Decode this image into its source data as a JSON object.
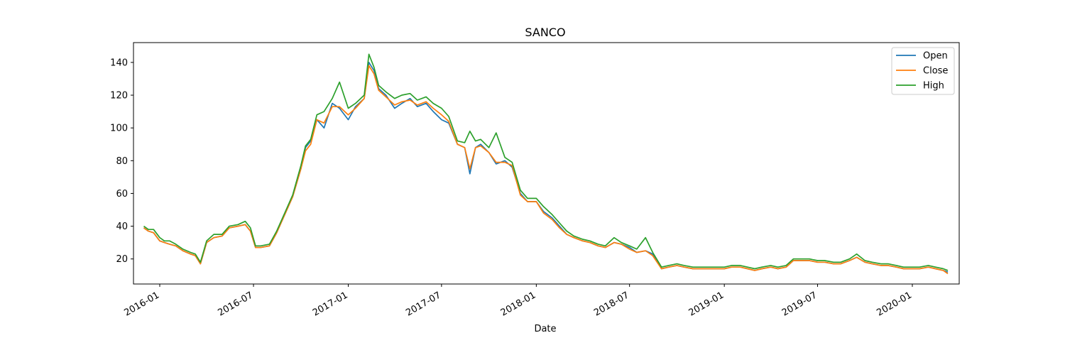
{
  "chart_data": {
    "type": "line",
    "title": "SANCO",
    "xlabel": "Date",
    "ylabel": "",
    "xlim": [
      "2015-11-11",
      "2020-04-01"
    ],
    "ylim": [
      4.7,
      152.1
    ],
    "x_ticks": [
      "2016-01",
      "2016-07",
      "2017-01",
      "2017-07",
      "2018-01",
      "2018-07",
      "2019-01",
      "2019-07",
      "2020-01"
    ],
    "y_ticks": [
      20,
      40,
      60,
      80,
      100,
      120,
      140
    ],
    "grid": false,
    "legend": {
      "position": "top-right"
    },
    "x": [
      "2015-12-01",
      "2015-12-10",
      "2015-12-20",
      "2016-01-01",
      "2016-01-10",
      "2016-01-20",
      "2016-02-01",
      "2016-02-15",
      "2016-03-01",
      "2016-03-10",
      "2016-03-20",
      "2016-04-01",
      "2016-04-15",
      "2016-05-01",
      "2016-05-15",
      "2016-06-01",
      "2016-06-15",
      "2016-06-25",
      "2016-07-05",
      "2016-07-15",
      "2016-08-01",
      "2016-08-15",
      "2016-09-01",
      "2016-09-15",
      "2016-10-01",
      "2016-10-10",
      "2016-10-20",
      "2016-11-01",
      "2016-11-15",
      "2016-12-01",
      "2016-12-15",
      "2017-01-01",
      "2017-01-15",
      "2017-02-01",
      "2017-02-10",
      "2017-02-20",
      "2017-03-01",
      "2017-03-15",
      "2017-04-01",
      "2017-04-15",
      "2017-05-01",
      "2017-05-15",
      "2017-06-01",
      "2017-06-15",
      "2017-07-01",
      "2017-07-15",
      "2017-08-01",
      "2017-08-15",
      "2017-08-25",
      "2017-09-05",
      "2017-09-15",
      "2017-10-01",
      "2017-10-15",
      "2017-11-01",
      "2017-11-15",
      "2017-12-01",
      "2017-12-15",
      "2018-01-01",
      "2018-01-15",
      "2018-02-01",
      "2018-02-15",
      "2018-03-01",
      "2018-03-15",
      "2018-04-01",
      "2018-04-15",
      "2018-05-01",
      "2018-05-15",
      "2018-06-01",
      "2018-06-15",
      "2018-07-01",
      "2018-07-15",
      "2018-08-01",
      "2018-08-15",
      "2018-09-01",
      "2018-09-15",
      "2018-10-01",
      "2018-10-15",
      "2018-11-01",
      "2018-11-15",
      "2018-12-01",
      "2018-12-15",
      "2019-01-01",
      "2019-01-15",
      "2019-02-01",
      "2019-02-15",
      "2019-03-01",
      "2019-03-15",
      "2019-04-01",
      "2019-04-15",
      "2019-05-01",
      "2019-05-15",
      "2019-06-01",
      "2019-06-15",
      "2019-07-01",
      "2019-07-15",
      "2019-08-01",
      "2019-08-15",
      "2019-09-01",
      "2019-09-15",
      "2019-10-01",
      "2019-10-15",
      "2019-11-01",
      "2019-11-15",
      "2019-12-01",
      "2019-12-15",
      "2020-01-01",
      "2020-01-15",
      "2020-02-01",
      "2020-02-15",
      "2020-03-01",
      "2020-03-10"
    ],
    "series": [
      {
        "name": "Open",
        "color": "#1f77b4",
        "values": [
          39,
          37,
          36,
          31,
          30,
          29,
          28,
          25,
          23,
          22,
          17,
          30,
          33,
          34,
          39,
          40,
          41,
          37,
          27,
          27,
          28,
          36,
          48,
          58,
          75,
          88,
          92,
          105,
          100,
          115,
          112,
          105,
          113,
          118,
          140,
          135,
          124,
          120,
          112,
          115,
          118,
          113,
          115,
          110,
          105,
          103,
          90,
          88,
          72,
          88,
          90,
          85,
          78,
          80,
          76,
          60,
          55,
          55,
          49,
          45,
          40,
          35,
          33,
          31,
          30,
          28,
          27,
          30,
          29,
          27,
          24,
          25,
          23,
          14,
          15,
          16,
          15,
          14,
          14,
          14,
          14,
          14,
          15,
          15,
          14,
          13,
          14,
          15,
          14,
          15,
          19,
          19,
          19,
          18,
          18,
          17,
          17,
          19,
          21,
          18,
          17,
          16,
          16,
          15,
          14,
          14,
          14,
          15,
          14,
          13,
          12
        ]
      },
      {
        "name": "Close",
        "color": "#ff7f0e",
        "values": [
          39,
          37,
          36,
          31,
          30,
          29,
          28,
          25,
          23,
          22,
          17,
          30,
          33,
          34,
          39,
          40,
          41,
          37,
          27,
          27,
          28,
          36,
          48,
          58,
          75,
          86,
          90,
          105,
          103,
          113,
          113,
          108,
          112,
          118,
          138,
          133,
          123,
          119,
          114,
          116,
          117,
          114,
          116,
          112,
          108,
          104,
          90,
          88,
          75,
          88,
          89,
          85,
          79,
          79,
          77,
          59,
          55,
          55,
          48,
          44,
          39,
          35,
          33,
          31,
          30,
          28,
          27,
          30,
          29,
          26,
          24,
          25,
          22,
          14,
          15,
          16,
          15,
          14,
          14,
          14,
          14,
          14,
          15,
          15,
          14,
          13,
          14,
          15,
          14,
          15,
          19,
          19,
          19,
          18,
          18,
          17,
          17,
          19,
          21,
          18,
          17,
          16,
          16,
          15,
          14,
          14,
          14,
          15,
          14,
          13,
          11
        ]
      },
      {
        "name": "High",
        "color": "#2ca02c",
        "values": [
          40,
          38,
          38,
          33,
          31,
          31,
          29,
          26,
          24,
          23,
          18,
          31,
          35,
          35,
          40,
          41,
          43,
          39,
          28,
          28,
          29,
          37,
          49,
          59,
          77,
          89,
          93,
          108,
          110,
          118,
          128,
          112,
          115,
          120,
          145,
          137,
          126,
          122,
          118,
          120,
          121,
          117,
          119,
          115,
          112,
          107,
          92,
          91,
          98,
          92,
          93,
          88,
          97,
          82,
          79,
          62,
          57,
          57,
          52,
          47,
          42,
          37,
          34,
          32,
          31,
          29,
          28,
          33,
          30,
          28,
          26,
          33,
          24,
          15,
          16,
          17,
          16,
          15,
          15,
          15,
          15,
          15,
          16,
          16,
          15,
          14,
          15,
          16,
          15,
          16,
          20,
          20,
          20,
          19,
          19,
          18,
          18,
          20,
          23,
          19,
          18,
          17,
          17,
          16,
          15,
          15,
          15,
          16,
          15,
          14,
          13
        ]
      }
    ]
  }
}
